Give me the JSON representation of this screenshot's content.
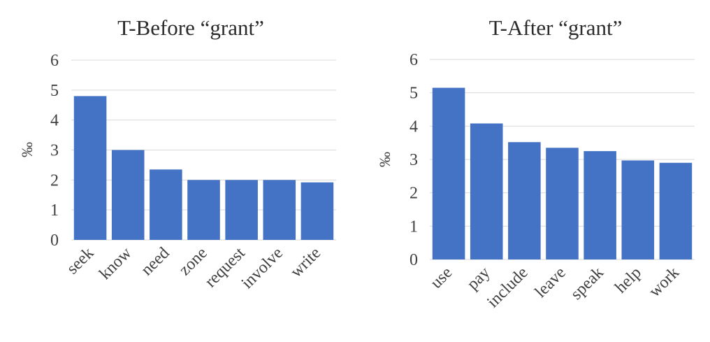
{
  "chart_data": [
    {
      "type": "bar",
      "title": "T-Before “grant”",
      "ylabel": "‰",
      "xlabel": "",
      "ylim": [
        0,
        6
      ],
      "yticks": [
        "0",
        "1",
        "2",
        "3",
        "4",
        "5",
        "6"
      ],
      "categories": [
        "seek",
        "know",
        "need",
        "zone",
        "request",
        "involve",
        "write"
      ],
      "values": [
        4.8,
        3.0,
        2.35,
        2.0,
        2.0,
        2.0,
        1.92
      ],
      "color": "#4472c4",
      "grid": true,
      "legend": "none"
    },
    {
      "type": "bar",
      "title": "T-After “grant”",
      "ylabel": "‰",
      "xlabel": "",
      "ylim": [
        0,
        6
      ],
      "yticks": [
        "0",
        "1",
        "2",
        "3",
        "4",
        "5",
        "6"
      ],
      "categories": [
        "use",
        "pay",
        "include",
        "leave",
        "speak",
        "help",
        "work"
      ],
      "values": [
        5.15,
        4.08,
        3.52,
        3.35,
        3.25,
        2.97,
        2.9
      ],
      "color": "#4472c4",
      "grid": true,
      "legend": "none"
    }
  ]
}
